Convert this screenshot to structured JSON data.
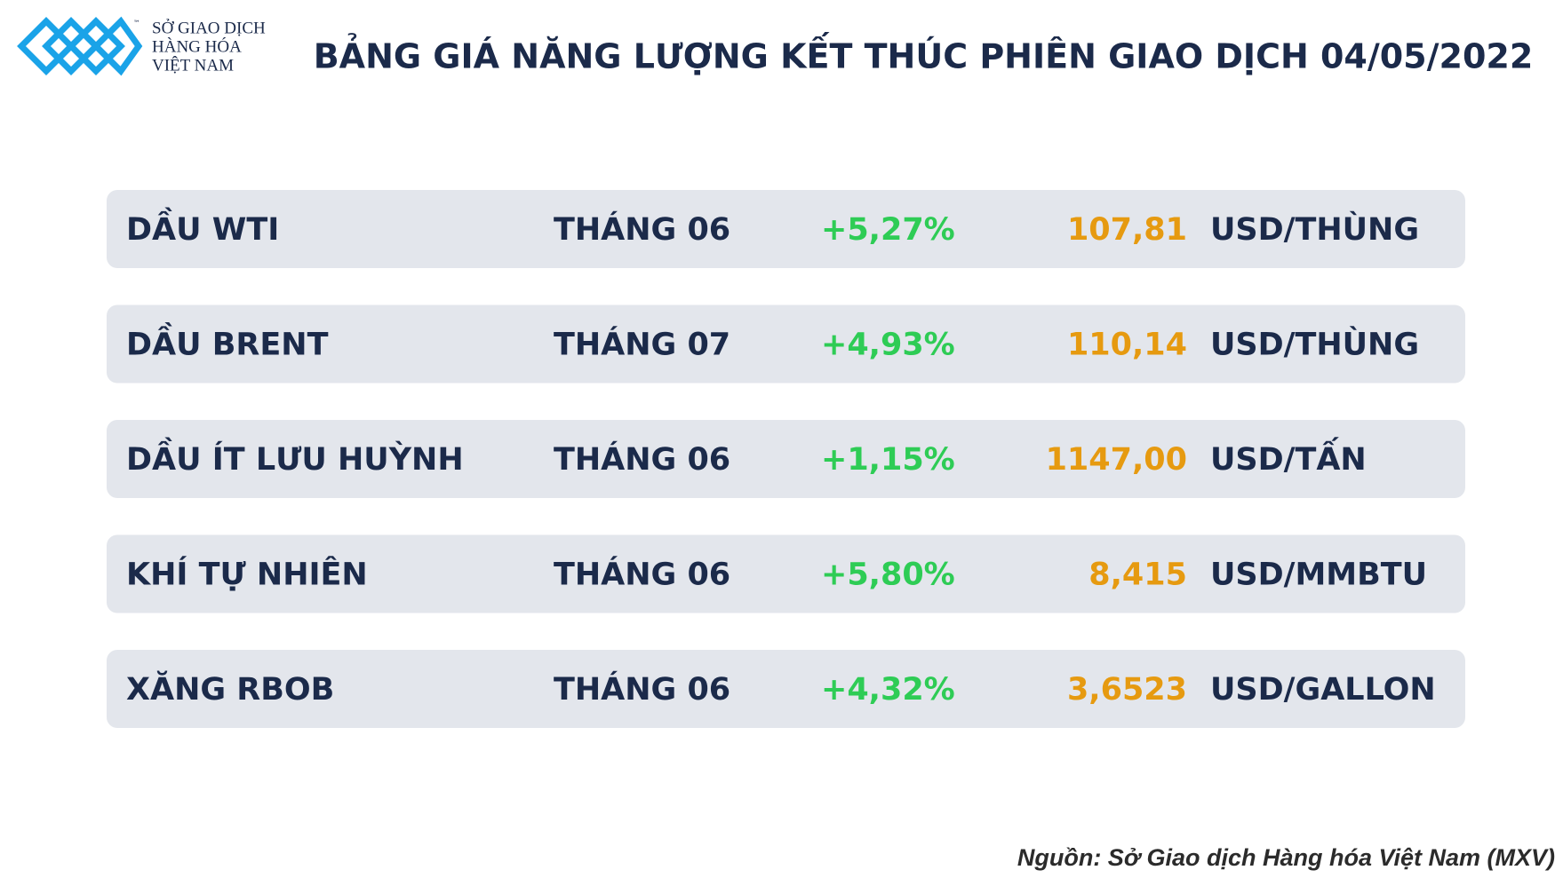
{
  "logo": {
    "lines": [
      "SỞ GIAO DỊCH",
      "HÀNG HÓA",
      "VIỆT NAM"
    ],
    "trademark": "™"
  },
  "header": {
    "title": "BẢNG GIÁ NĂNG LƯỢNG KẾT THÚC PHIÊN GIAO DỊCH 04/05/2022"
  },
  "table": {
    "rows": [
      [
        "DẦU WTI",
        "THÁNG 06",
        "+5,27%",
        "107,81",
        "USD/THÙNG"
      ],
      [
        "DẦU BRENT",
        "THÁNG 07",
        "+4,93%",
        "110,14",
        "USD/THÙNG"
      ],
      [
        "DẦU ÍT LƯU HUỲNH",
        "THÁNG 06",
        "+1,15%",
        "1147,00",
        "USD/TẤN"
      ],
      [
        "KHÍ TỰ NHIÊN",
        "THÁNG 06",
        "+5,80%",
        "8,415",
        "USD/MMBTU"
      ],
      [
        "XĂNG RBOB",
        "THÁNG 06",
        "+4,32%",
        "3,6523",
        "USD/GALLON"
      ]
    ]
  },
  "source": "Nguồn: Sở Giao dịch Hàng hóa Việt Nam (MXV)"
}
